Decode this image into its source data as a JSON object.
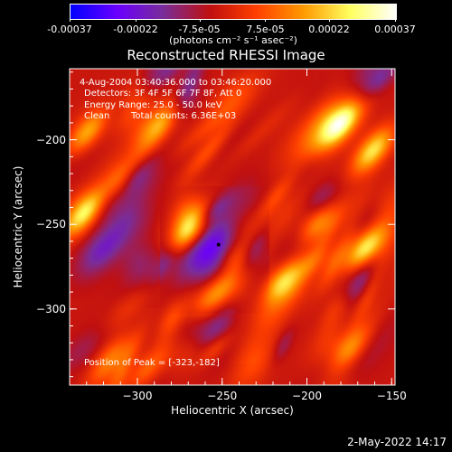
{
  "colorbar": {
    "tick_labels": [
      "-0.00037",
      "-0.00022",
      "-7.5e-05",
      "7.5e-05",
      "0.00022",
      "0.00037"
    ],
    "tick_values": [
      -0.00037,
      -0.00022,
      -7.5e-05,
      7.5e-05,
      0.00022,
      0.00037
    ],
    "range": [
      -0.00037,
      0.00037
    ],
    "units": "(photons cm⁻² s⁻¹ asec⁻²)",
    "colormap": [
      "#0000ff",
      "#6a00ff",
      "#7a2d9a",
      "#c01010",
      "#ff4000",
      "#ff9a00",
      "#ffff60",
      "#ffffff"
    ]
  },
  "chart_data": {
    "type": "heatmap",
    "title": "Reconstructed RHESSI Image",
    "xlabel": "Heliocentric X (arcsec)",
    "ylabel": "Heliocentric Y (arcsec)",
    "xlim": [
      -340,
      -148
    ],
    "ylim": [
      -345,
      -158
    ],
    "xticks": [
      -300,
      -250,
      -200,
      -150
    ],
    "yticks": [
      -200,
      -250,
      -300
    ],
    "xtick_labels": [
      "−300",
      "−250",
      "−200",
      "−150"
    ],
    "ytick_labels": [
      "−200",
      "−250",
      "−300"
    ],
    "peak": [
      -323,
      -182
    ],
    "annotations": {
      "time": "4-Aug-2004 03:40:36.000 to 03:46:20.000",
      "detectors": "Detectors: 3F 4F 5F 6F 7F 8F, Att 0",
      "energy": "Energy Range: 25.0 - 50.0 keV",
      "method": "Clean",
      "counts": "Total counts: 6.36E+03",
      "peak_text": "Position of Peak = [-323,-182]"
    }
  },
  "footer": {
    "timestamp": "2-May-2022 14:17"
  }
}
